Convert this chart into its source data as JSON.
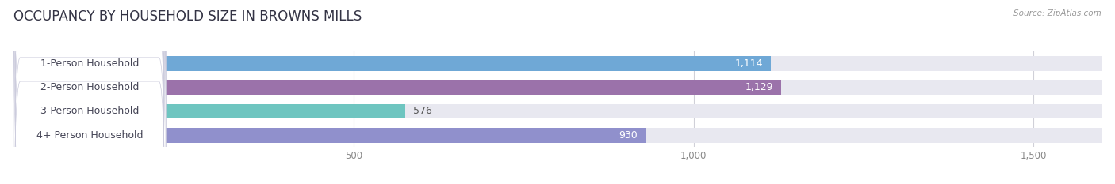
{
  "title": "OCCUPANCY BY HOUSEHOLD SIZE IN BROWNS MILLS",
  "source": "Source: ZipAtlas.com",
  "categories": [
    "1-Person Household",
    "2-Person Household",
    "3-Person Household",
    "4+ Person Household"
  ],
  "values": [
    1114,
    1129,
    576,
    930
  ],
  "bar_colors": [
    "#6fa8d6",
    "#9b72aa",
    "#6ec5c0",
    "#9090cc"
  ],
  "background_color": "#ffffff",
  "bar_bg_color": "#e8e8f0",
  "label_box_color": "#ffffff",
  "xlim_max": 1600,
  "xticks": [
    500,
    1000,
    1500
  ],
  "title_fontsize": 12,
  "label_fontsize": 9,
  "value_fontsize": 9,
  "bar_height": 0.62,
  "value_color_inside": "#ffffff",
  "value_color_outside": "#555555",
  "grid_color": "#d0d0d8",
  "tick_color": "#888888",
  "title_color": "#333344",
  "source_color": "#999999"
}
